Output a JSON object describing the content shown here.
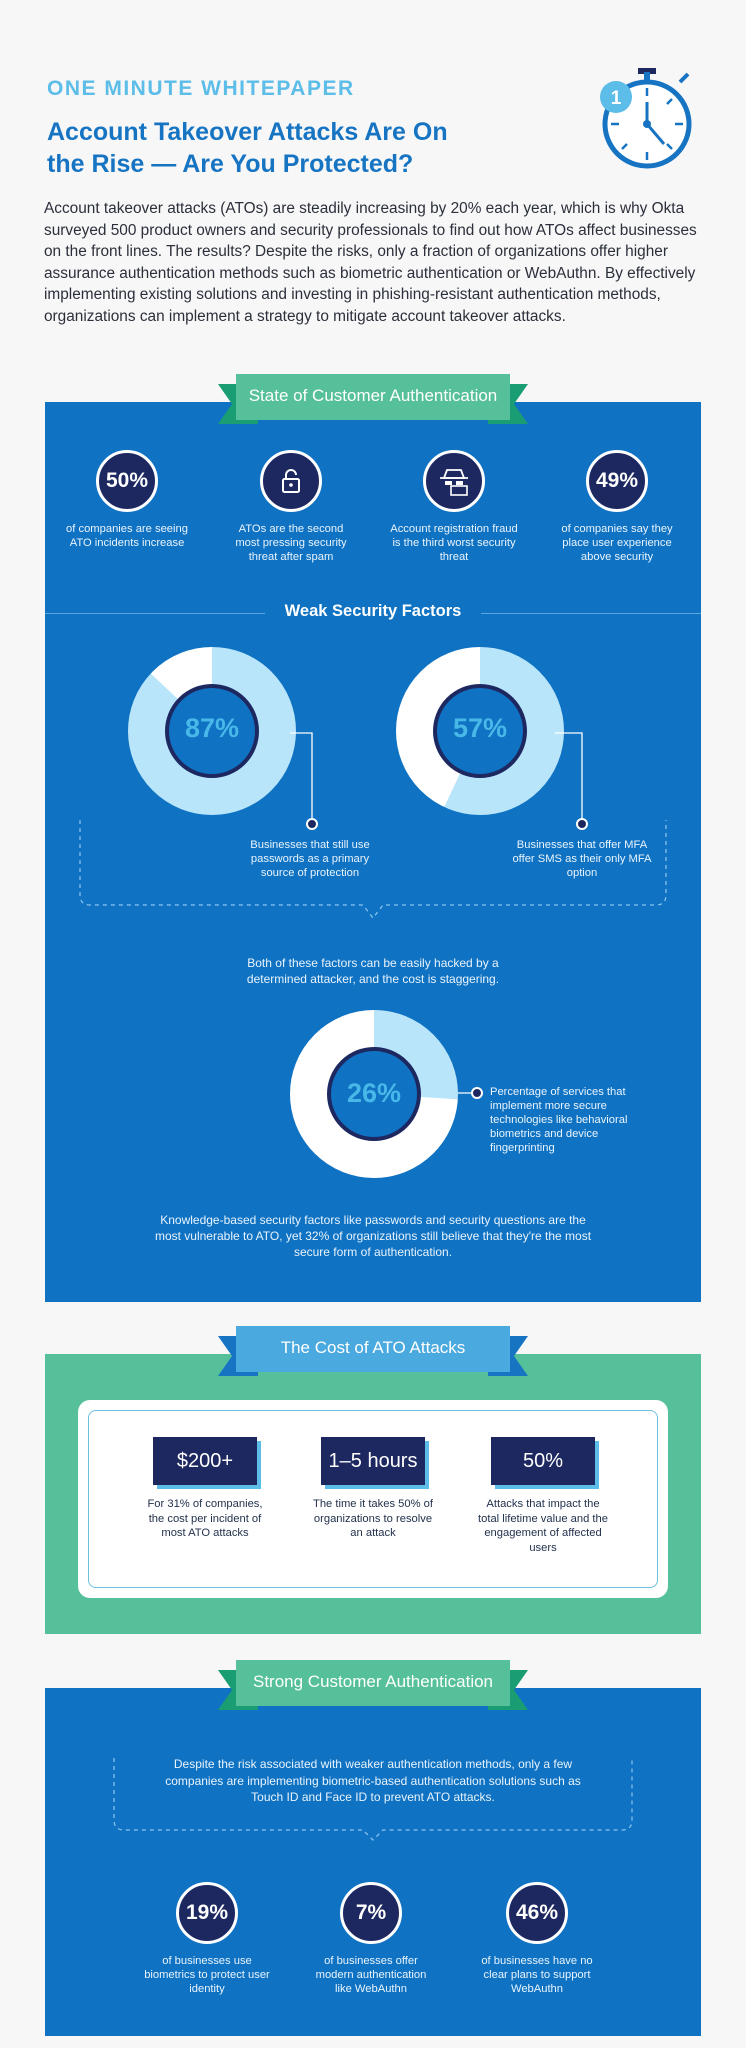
{
  "header": {
    "kicker": "ONE MINUTE WHITEPAPER",
    "title_line1": "Account Takeover Attacks Are On",
    "title_line2": "the Rise — Are You Protected?",
    "intro": "Account takeover attacks (ATOs) are steadily increasing by 20% each year, which is why Okta surveyed 500 product owners and security professionals to find out how ATOs affect businesses on the front lines. The results? Despite the risks, only a fraction of organizations offer higher assurance authentication methods such as biometric authentication or WebAuthn. By effectively implementing existing solutions and investing in phishing-resistant authentication methods, organizations can implement a strategy to mitigate account takeover attacks.",
    "stopwatch_number": "1"
  },
  "section_customer_auth": {
    "ribbon": "State of Customer Authentication",
    "stats": [
      {
        "value": "50%",
        "text": "of companies are seeing ATO incidents increase"
      },
      {
        "icon": "lock-icon",
        "text": "ATOs are the second most pressing security threat after spam"
      },
      {
        "icon": "hacker-icon",
        "text": "Account registration fraud is the third worst security threat"
      },
      {
        "value": "49%",
        "text": "of companies say they place user experience above security"
      }
    ]
  },
  "section_weak": {
    "heading": "Weak Security Factors",
    "donuts": [
      {
        "value": "87%",
        "fraction": 0.87,
        "text": "Businesses that still use passwords as a primary source of protection"
      },
      {
        "value": "57%",
        "fraction": 0.57,
        "text": "Businesses that offer MFA offer SMS as their only MFA option"
      },
      {
        "value": "26%",
        "fraction": 0.26,
        "text": "Percentage of services that implement more secure technologies like behavioral biometrics and device fingerprinting"
      }
    ],
    "middle_text": "Both of these factors can be easily hacked by a determined attacker, and the cost is staggering.",
    "bottom_text": "Knowledge-based security factors like passwords and security questions are the most vulnerable to ATO, yet 32% of organizations still believe that they're the most secure form of authentication."
  },
  "section_cost": {
    "ribbon": "The Cost of ATO Attacks",
    "items": [
      {
        "value": "$200+",
        "text": "For 31% of companies, the cost per incident of most ATO attacks"
      },
      {
        "value": "1–5 hours",
        "text": "The time it takes 50% of organizations to resolve an attack"
      },
      {
        "value": "50%",
        "text": "Attacks that impact the total lifetime value and the engagement of affected users"
      }
    ]
  },
  "section_strong": {
    "ribbon": "Strong Customer Authentication",
    "intro": "Despite the risk associated with weaker authentication methods, only a few companies are implementing biometric-based authentication solutions such as Touch ID and Face ID to prevent ATO attacks.",
    "stats": [
      {
        "value": "19%",
        "text": "of businesses use biometrics to protect user identity"
      },
      {
        "value": "7%",
        "text": "of businesses offer modern authentication like WebAuthn"
      },
      {
        "value": "46%",
        "text": "of businesses have no clear plans to support WebAuthn"
      }
    ]
  },
  "colors": {
    "blue_panel": "#0f72c3",
    "green_panel": "#56c09a",
    "navy": "#1d2860",
    "light_blue": "#5cbde8",
    "title_blue": "#1674c2"
  }
}
